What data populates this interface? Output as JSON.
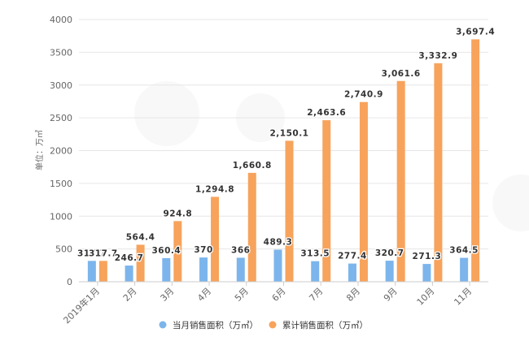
{
  "chart_data": {
    "type": "bar",
    "title": "",
    "xlabel": "",
    "ylabel": "单位：万㎡",
    "ylim": [
      0,
      4000
    ],
    "yticks": [
      0,
      500,
      1000,
      1500,
      2000,
      2500,
      3000,
      3500,
      4000
    ],
    "grid": true,
    "legend_position": "bottom",
    "categories": [
      "2019年1月",
      "2月",
      "3月",
      "4月",
      "5月",
      "6月",
      "7月",
      "8月",
      "9月",
      "10月",
      "11月"
    ],
    "series": [
      {
        "name": "当月销售面积（万㎡）",
        "color": "#7cb5ec",
        "values": [
          317.7,
          246.7,
          360.4,
          370,
          366,
          489.3,
          313.5,
          277.4,
          320.7,
          271.3,
          364.5
        ],
        "labels": [
          "317.7",
          "246.7",
          "360.4",
          "370",
          "366",
          "489.3",
          "313.5",
          "277.4",
          "320.7",
          "271.3",
          "364.5"
        ]
      },
      {
        "name": "累计销售面积（万㎡）",
        "color": "#f7a35c",
        "values": [
          317.7,
          564.4,
          924.8,
          1294.8,
          1660.8,
          2150.1,
          2463.6,
          2740.9,
          3061.6,
          3332.9,
          3697.4
        ],
        "labels": [
          "317.7",
          "564.4",
          "924.8",
          "1,294.8",
          "1,660.8",
          "2,150.1",
          "2,463.6",
          "2,740.9",
          "3,061.6",
          "3,332.9",
          "3,697.4"
        ]
      }
    ]
  },
  "legend": {
    "items": [
      {
        "label": "当月销售面积（万㎡）",
        "color": "#7cb5ec"
      },
      {
        "label": "累计销售面积（万㎡）",
        "color": "#f7a35c"
      }
    ]
  }
}
